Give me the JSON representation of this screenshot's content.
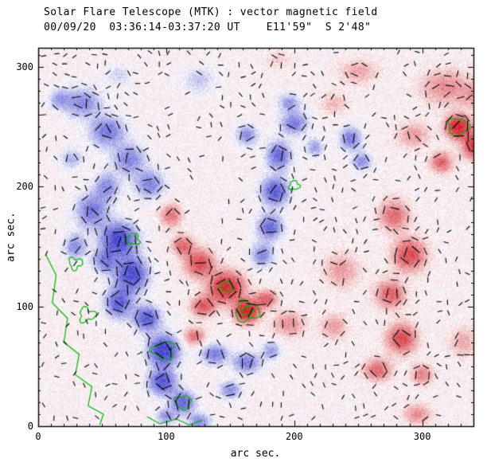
{
  "chart_data": {
    "type": "heatmap",
    "title": "Solar Flare Telescope (MTK) : vector magnetic field",
    "subtitle": "00/09/20  03:36:14-03:37:20 UT    E11'59\"  S 2'48\"",
    "xlabel": "arc sec.",
    "ylabel": "arc sec.",
    "xlim": [
      0,
      340
    ],
    "ylim": [
      0,
      316
    ],
    "xticks": [
      0,
      100,
      200,
      300
    ],
    "yticks": [
      0,
      100,
      200,
      300
    ],
    "legend": "red = positive polarity, blue = negative polarity, black ticks = transverse field vectors, green = contours",
    "colors": {
      "positive": "#cd141e",
      "positive_light": "#ff8c8c",
      "negative": "#2828c8",
      "negative_light": "#9494e4",
      "contour": "#00b400",
      "vector": "#000000",
      "axis": "#000000",
      "background": "#ffffff"
    },
    "blob_format": [
      "x_arcsec",
      "y_arcsec",
      "rx_arcsec",
      "ry_arcsec",
      "signed_amplitude"
    ],
    "blobs": [
      [
        35,
        270,
        14,
        12,
        -0.45
      ],
      [
        54,
        246,
        13,
        12,
        -0.55
      ],
      [
        71,
        223,
        12,
        12,
        -0.5
      ],
      [
        87,
        202,
        11,
        11,
        -0.5
      ],
      [
        17,
        273,
        8,
        8,
        -0.35
      ],
      [
        54,
        200,
        9,
        11,
        -0.45
      ],
      [
        42,
        180,
        12,
        14,
        -0.55
      ],
      [
        63,
        156,
        13,
        13,
        -0.9
      ],
      [
        52,
        138,
        9,
        10,
        -0.5
      ],
      [
        73,
        127,
        12,
        14,
        -0.85
      ],
      [
        63,
        103,
        10,
        12,
        -0.7
      ],
      [
        85,
        90,
        10,
        10,
        -0.75
      ],
      [
        98,
        63,
        11,
        12,
        -1.0
      ],
      [
        97,
        37,
        10,
        10,
        -0.8
      ],
      [
        113,
        20,
        9,
        9,
        -0.7
      ],
      [
        100,
        8,
        7,
        6,
        -0.45
      ],
      [
        29,
        150,
        8,
        10,
        -0.45
      ],
      [
        126,
        4,
        8,
        6,
        -0.5
      ],
      [
        138,
        60,
        10,
        8,
        -0.55
      ],
      [
        163,
        53,
        10,
        8,
        -0.55
      ],
      [
        182,
        63,
        7,
        7,
        -0.4
      ],
      [
        150,
        30,
        8,
        7,
        -0.45
      ],
      [
        200,
        253,
        10,
        9,
        -0.55
      ],
      [
        196,
        270,
        8,
        7,
        -0.4
      ],
      [
        188,
        226,
        9,
        11,
        -0.65
      ],
      [
        185,
        196,
        10,
        11,
        -0.75
      ],
      [
        181,
        166,
        9,
        10,
        -0.65
      ],
      [
        175,
        143,
        8,
        9,
        -0.5
      ],
      [
        163,
        243,
        8,
        8,
        -0.45
      ],
      [
        216,
        233,
        6,
        7,
        -0.4
      ],
      [
        244,
        240,
        8,
        9,
        -0.55
      ],
      [
        253,
        221,
        7,
        7,
        -0.45
      ],
      [
        126,
        289,
        12,
        10,
        -0.22
      ],
      [
        63,
        293,
        10,
        8,
        -0.18
      ],
      [
        26,
        223,
        8,
        8,
        -0.3
      ],
      [
        126,
        136,
        11,
        11,
        0.65
      ],
      [
        147,
        116,
        13,
        12,
        0.9
      ],
      [
        163,
        96,
        9,
        9,
        1.0
      ],
      [
        129,
        100,
        9,
        8,
        0.6
      ],
      [
        113,
        151,
        8,
        8,
        0.5
      ],
      [
        178,
        106,
        8,
        7,
        0.55
      ],
      [
        104,
        176,
        8,
        9,
        0.45
      ],
      [
        122,
        75,
        8,
        7,
        0.45
      ],
      [
        196,
        85,
        12,
        10,
        0.35
      ],
      [
        278,
        176,
        11,
        12,
        0.5
      ],
      [
        290,
        143,
        12,
        13,
        0.65
      ],
      [
        275,
        110,
        11,
        11,
        0.55
      ],
      [
        284,
        73,
        11,
        12,
        0.65
      ],
      [
        265,
        47,
        10,
        9,
        0.5
      ],
      [
        300,
        43,
        8,
        8,
        0.4
      ],
      [
        296,
        10,
        10,
        8,
        0.35
      ],
      [
        328,
        250,
        9,
        9,
        1.0
      ],
      [
        342,
        234,
        10,
        10,
        0.85
      ],
      [
        315,
        220,
        8,
        8,
        0.55
      ],
      [
        318,
        283,
        18,
        14,
        0.35
      ],
      [
        348,
        276,
        14,
        12,
        0.4
      ],
      [
        293,
        243,
        12,
        10,
        0.3
      ],
      [
        250,
        296,
        14,
        10,
        0.25
      ],
      [
        231,
        269,
        10,
        9,
        0.2
      ],
      [
        237,
        130,
        13,
        14,
        0.3
      ],
      [
        231,
        83,
        10,
        10,
        0.3
      ],
      [
        188,
        306,
        10,
        7,
        0.15
      ],
      [
        332,
        70,
        10,
        12,
        0.25
      ]
    ],
    "contours": {
      "ring_format": [
        "cx_arcsec",
        "cy_arcsec",
        "radius_arcsec",
        "wobble",
        "phase"
      ],
      "rings": [
        [
          328,
          250,
          8,
          0.15,
          1
        ],
        [
          163,
          96,
          9,
          0.2,
          2
        ],
        [
          163,
          96,
          4,
          0.15,
          3
        ],
        [
          147,
          116,
          5,
          0.2,
          4
        ],
        [
          98,
          63,
          8,
          0.25,
          5
        ],
        [
          113,
          20,
          6,
          0.2,
          6
        ],
        [
          29,
          136,
          5,
          0.3,
          7
        ],
        [
          38,
          93,
          6,
          0.3,
          8
        ],
        [
          200,
          201,
          4,
          0.2,
          9
        ],
        [
          74,
          156,
          5,
          0.25,
          10
        ]
      ],
      "paths": [
        [
          [
            6,
            143
          ],
          [
            14,
            126
          ],
          [
            11,
            103
          ],
          [
            23,
            90
          ],
          [
            20,
            70
          ],
          [
            32,
            60
          ],
          [
            29,
            43
          ],
          [
            42,
            33
          ],
          [
            39,
            17
          ],
          [
            51,
            10
          ],
          [
            48,
            1
          ]
        ],
        [
          [
            85,
            8
          ],
          [
            95,
            2
          ],
          [
            108,
            6
          ],
          [
            118,
            1
          ],
          [
            128,
            5
          ]
        ]
      ]
    }
  }
}
